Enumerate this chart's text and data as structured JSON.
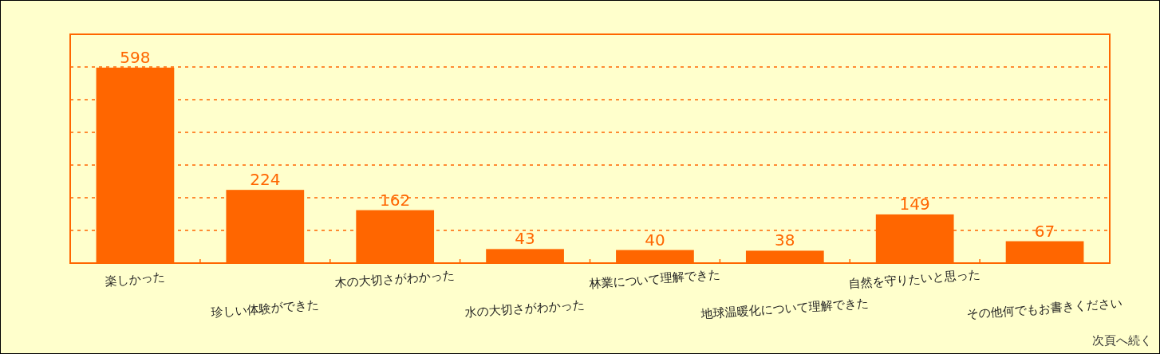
{
  "chart_data": {
    "type": "bar",
    "categories": [
      "楽しかった",
      "珍しい体験ができた",
      "木の大切さがわかった",
      "水の大切さがわかった",
      "林業について理解できた",
      "地球温暖化について理解できた",
      "自然を守りたいと思った",
      "その他何でもお書きください"
    ],
    "values": [
      598,
      224,
      162,
      43,
      40,
      38,
      149,
      67
    ],
    "color": "#ff6600",
    "data_labels": true,
    "ylim": [
      0,
      700
    ],
    "yticks": [
      {
        "value": 0,
        "label": null
      },
      {
        "value": 100,
        "label": null
      },
      {
        "value": 200,
        "label": null
      },
      {
        "value": 300,
        "label": null
      },
      {
        "value": 400,
        "label": null
      },
      {
        "value": 500,
        "label": null
      },
      {
        "value": 600,
        "label": null
      },
      {
        "value": 700,
        "label": null
      }
    ],
    "grid": "y",
    "annotations": [
      "次頁へ続く"
    ]
  }
}
